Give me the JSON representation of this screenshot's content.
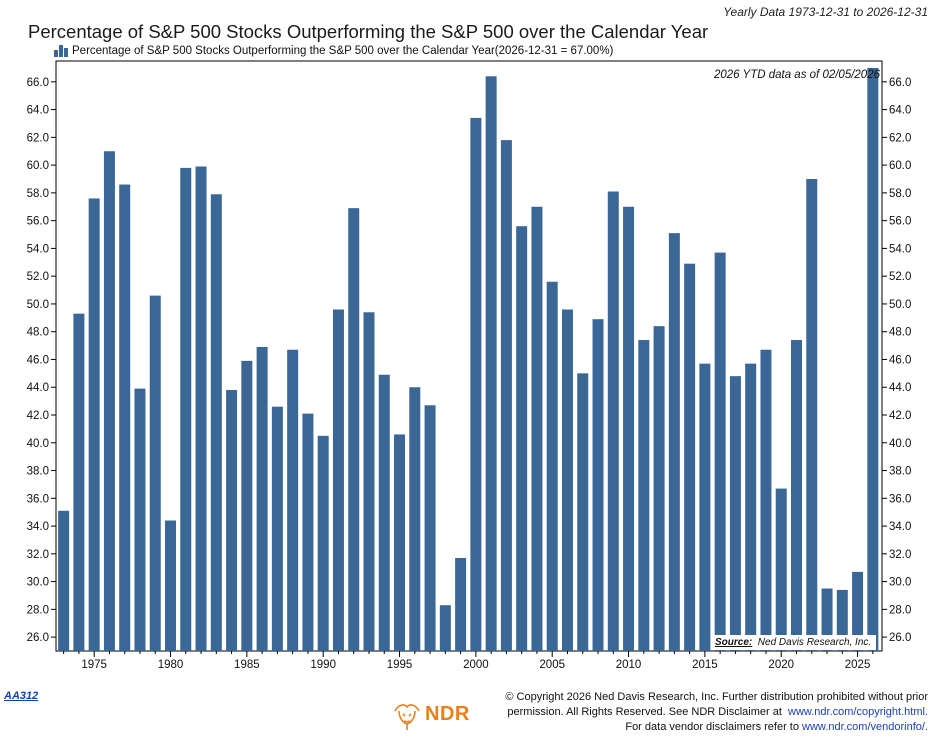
{
  "header": {
    "date_range": "Yearly Data 1973-12-31 to 2026-12-31",
    "title": "Percentage of S&P 500 Stocks Outperforming the S&P 500 over the Calendar Year"
  },
  "legend": {
    "label": "Percentage of S&P 500 Stocks Outperforming the S&P 500 over the Calendar Year(2026-12-31 = 67.00%)",
    "icon": "bar-chart-icon"
  },
  "annotations": {
    "ytd_note": "2026 YTD data as of 02/05/2026",
    "source_label": "Source:",
    "source_value": "Ned Davis Research, Inc."
  },
  "footer": {
    "chart_id": "AA312",
    "logo_text": "NDR",
    "copyright_line1": "© Copyright 2026 Ned Davis Research, Inc. Further distribution prohibited without prior",
    "copyright_line2_pre": "permission. All Rights Reserved. See NDR Disclaimer at",
    "copyright_link1": "www.ndr.com/copyright.html.",
    "copyright_line3_pre": "For data vendor disclaimers refer to",
    "copyright_link2": "www.ndr.com/vendorinfo/."
  },
  "colors": {
    "bar": "#3a6796",
    "axis": "#000000"
  },
  "chart_data": {
    "type": "bar",
    "title": "Percentage of S&P 500 Stocks Outperforming the S&P 500 over the Calendar Year",
    "ylim": [
      25.0,
      67.5
    ],
    "xlim": [
      1972.5,
      2026.6
    ],
    "y_ticks": [
      "26.0",
      "28.0",
      "30.0",
      "32.0",
      "34.0",
      "36.0",
      "38.0",
      "40.0",
      "42.0",
      "44.0",
      "46.0",
      "48.0",
      "50.0",
      "52.0",
      "54.0",
      "56.0",
      "58.0",
      "60.0",
      "62.0",
      "64.0",
      "66.0"
    ],
    "x_ticks": [
      "1975",
      "1980",
      "1985",
      "1990",
      "1995",
      "2000",
      "2005",
      "2010",
      "2015",
      "2020",
      "2025"
    ],
    "grid": false,
    "legend_position": "top-left",
    "categories": [
      1973,
      1974,
      1975,
      1976,
      1977,
      1978,
      1979,
      1980,
      1981,
      1982,
      1983,
      1984,
      1985,
      1986,
      1987,
      1988,
      1989,
      1990,
      1991,
      1992,
      1993,
      1994,
      1995,
      1996,
      1997,
      1998,
      1999,
      2000,
      2001,
      2002,
      2003,
      2004,
      2005,
      2006,
      2007,
      2008,
      2009,
      2010,
      2011,
      2012,
      2013,
      2014,
      2015,
      2016,
      2017,
      2018,
      2019,
      2020,
      2021,
      2022,
      2023,
      2024,
      2025,
      2026
    ],
    "values": [
      35.1,
      49.3,
      57.6,
      61.0,
      58.6,
      43.9,
      50.6,
      34.4,
      59.8,
      59.9,
      57.9,
      43.8,
      45.9,
      46.9,
      42.6,
      46.7,
      42.1,
      40.5,
      49.6,
      56.9,
      49.4,
      44.9,
      40.6,
      44.0,
      42.7,
      28.3,
      31.7,
      63.4,
      66.4,
      61.8,
      55.6,
      57.0,
      51.6,
      49.6,
      45.0,
      48.9,
      58.1,
      57.0,
      47.4,
      48.4,
      55.1,
      52.9,
      45.7,
      53.7,
      44.8,
      45.7,
      46.7,
      36.7,
      47.4,
      59.0,
      29.5,
      29.4,
      30.7,
      67.0
    ]
  }
}
